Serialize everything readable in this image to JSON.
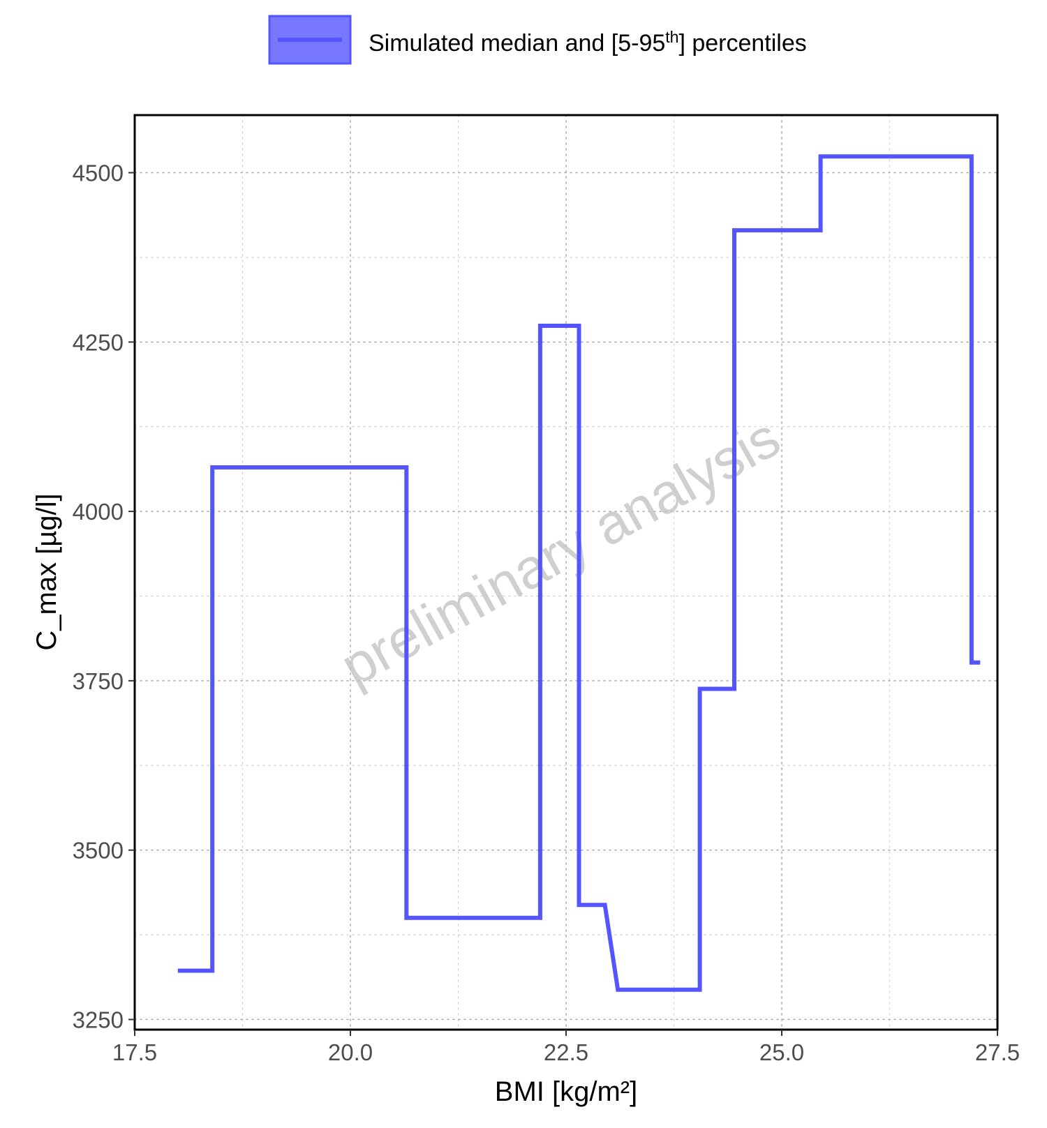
{
  "chart_data": {
    "type": "line",
    "title": "",
    "xlabel": "BMI [kg/m²]",
    "ylabel": "C_max [µg/l]",
    "xlim": [
      17.5,
      27.5
    ],
    "ylim": [
      3235,
      4585
    ],
    "x_ticks": [
      17.5,
      20.0,
      22.5,
      25.0,
      27.5
    ],
    "x_tick_labels": [
      "17.5",
      "20.0",
      "22.5",
      "25.0",
      "27.5"
    ],
    "y_ticks": [
      3250,
      3500,
      3750,
      4000,
      4250,
      4500
    ],
    "y_tick_labels": [
      "3250",
      "3500",
      "3750",
      "4000",
      "4250",
      "4500"
    ],
    "grid": true,
    "legend_position": "top",
    "watermark": "preliminary analysis",
    "legend": {
      "label_main": "Simulated median and [5-95",
      "label_sup": "th",
      "label_end": "] percentiles"
    },
    "series": [
      {
        "name": "Simulated median and [5-95th] percentiles",
        "color": "#5555ff",
        "points": [
          [
            18.0,
            3322
          ],
          [
            18.4,
            3322
          ],
          [
            18.4,
            4065
          ],
          [
            20.65,
            4065
          ],
          [
            20.65,
            3400
          ],
          [
            22.2,
            3400
          ],
          [
            22.2,
            4274
          ],
          [
            22.65,
            4274
          ],
          [
            22.65,
            3419
          ],
          [
            22.95,
            3419
          ],
          [
            23.1,
            3294
          ],
          [
            24.05,
            3294
          ],
          [
            24.05,
            3738
          ],
          [
            24.45,
            3738
          ],
          [
            24.45,
            4415
          ],
          [
            25.45,
            4415
          ],
          [
            25.45,
            4524
          ],
          [
            27.2,
            4524
          ],
          [
            27.2,
            3777
          ],
          [
            27.3,
            3777
          ]
        ]
      }
    ]
  }
}
